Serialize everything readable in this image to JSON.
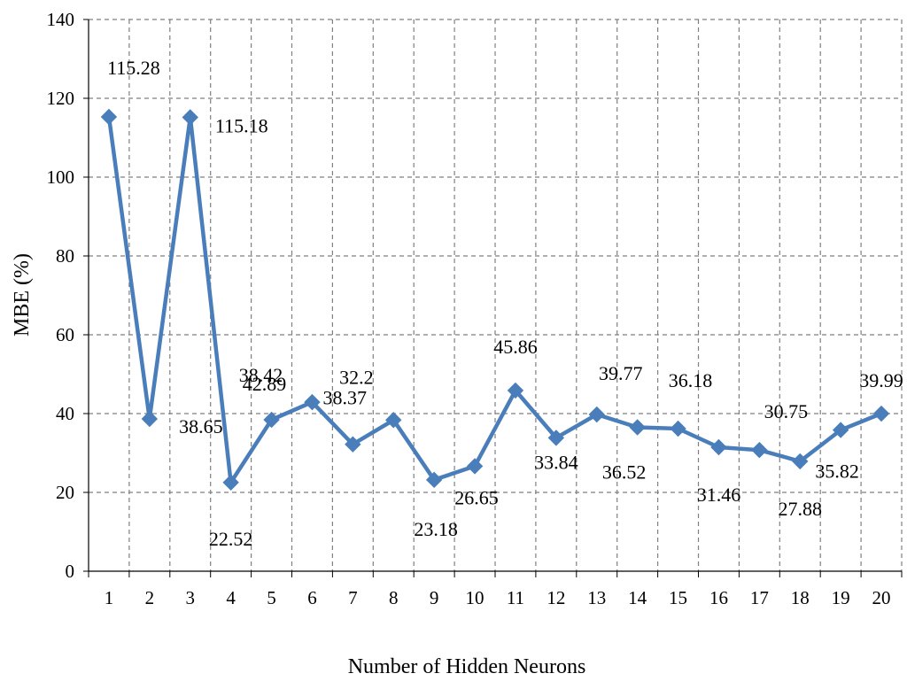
{
  "chart_data": {
    "type": "line",
    "title": "",
    "xlabel": "Number of Hidden Neurons",
    "ylabel": "MBE (%)",
    "ylim": [
      0,
      140
    ],
    "yticks": [
      0,
      20,
      40,
      60,
      80,
      100,
      120,
      140
    ],
    "categories": [
      "1",
      "2",
      "3",
      "4",
      "5",
      "6",
      "7",
      "8",
      "9",
      "10",
      "11",
      "12",
      "13",
      "14",
      "15",
      "16",
      "17",
      "18",
      "19",
      "20"
    ],
    "series": [
      {
        "values": [
          115.28,
          38.65,
          115.18,
          22.52,
          38.42,
          42.89,
          32.2,
          38.37,
          23.18,
          26.65,
          45.86,
          33.84,
          39.77,
          36.52,
          36.18,
          31.46,
          30.75,
          27.88,
          35.82,
          39.99
        ],
        "labels": [
          "115.28",
          "38.65",
          "115.18",
          "22.52",
          "38.42",
          "42.89",
          "32.2",
          "38.37",
          "23.18",
          "26.65",
          "45.86",
          "33.84",
          "39.77",
          "36.52",
          "36.18",
          "31.46",
          "30.75",
          "27.88",
          "35.82",
          "39.99"
        ],
        "color": "#4a7ebb",
        "marker": "diamond"
      }
    ],
    "grid": true,
    "legend": "none"
  }
}
